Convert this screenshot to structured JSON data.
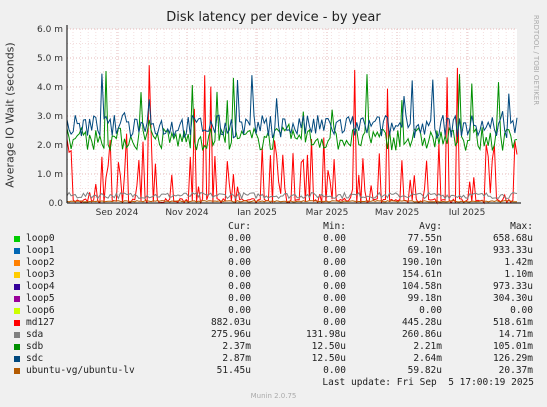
{
  "chart_data": {
    "type": "line",
    "title": "Disk latency per device - by year",
    "ylabel": "Average IO Wait (seconds)",
    "ylim": [
      0,
      6.0
    ],
    "y_ticks": [
      "0.0",
      "1.0 m",
      "2.0 m",
      "3.0 m",
      "4.0 m",
      "5.0 m",
      "6.0 m"
    ],
    "x_ticks": [
      "Sep 2024",
      "Nov 2024",
      "Jan 2025",
      "Mar 2025",
      "May 2025",
      "Jul 2025"
    ],
    "grid": true,
    "series": [
      {
        "name": "loop0",
        "color": "#00cc00",
        "level": 0.0
      },
      {
        "name": "loop1",
        "color": "#0066b3",
        "level": 0.0
      },
      {
        "name": "loop2",
        "color": "#ff8000",
        "level": 0.0
      },
      {
        "name": "loop3",
        "color": "#ffcc00",
        "level": 0.0
      },
      {
        "name": "loop4",
        "color": "#330099",
        "level": 0.0
      },
      {
        "name": "loop5",
        "color": "#990099",
        "level": 0.0
      },
      {
        "name": "loop6",
        "color": "#ccff00",
        "level": 0.0
      },
      {
        "name": "md127",
        "color": "#ff0000",
        "level": 0.45,
        "spiky": true
      },
      {
        "name": "sda",
        "color": "#808080",
        "level": 0.26
      },
      {
        "name": "sdb",
        "color": "#008f00",
        "level": 2.21
      },
      {
        "name": "sdc",
        "color": "#00487d",
        "level": 2.64
      },
      {
        "name": "ubuntu-vg/ubuntu-lv",
        "color": "#b35a00",
        "level": 0.06
      }
    ]
  },
  "legend": {
    "headers": {
      "cur": "Cur:",
      "min": "Min:",
      "avg": "Avg:",
      "max": "Max:"
    },
    "rows": [
      {
        "name": "loop0",
        "color": "#00cc00",
        "cur": "0.00",
        "min": "0.00",
        "avg": "77.55n",
        "max": "658.68u"
      },
      {
        "name": "loop1",
        "color": "#0066b3",
        "cur": "0.00",
        "min": "0.00",
        "avg": "69.10n",
        "max": "933.33u"
      },
      {
        "name": "loop2",
        "color": "#ff8000",
        "cur": "0.00",
        "min": "0.00",
        "avg": "190.10n",
        "max": "1.42m"
      },
      {
        "name": "loop3",
        "color": "#ffcc00",
        "cur": "0.00",
        "min": "0.00",
        "avg": "154.61n",
        "max": "1.10m"
      },
      {
        "name": "loop4",
        "color": "#330099",
        "cur": "0.00",
        "min": "0.00",
        "avg": "104.58n",
        "max": "973.33u"
      },
      {
        "name": "loop5",
        "color": "#990099",
        "cur": "0.00",
        "min": "0.00",
        "avg": "99.18n",
        "max": "304.30u"
      },
      {
        "name": "loop6",
        "color": "#ccff00",
        "cur": "0.00",
        "min": "0.00",
        "avg": "0.00",
        "max": "0.00"
      },
      {
        "name": "md127",
        "color": "#ff0000",
        "cur": "882.03u",
        "min": "0.00",
        "avg": "445.28u",
        "max": "518.61m"
      },
      {
        "name": "sda",
        "color": "#808080",
        "cur": "275.96u",
        "min": "131.98u",
        "avg": "260.86u",
        "max": "14.71m"
      },
      {
        "name": "sdb",
        "color": "#008f00",
        "cur": "2.37m",
        "min": "12.50u",
        "avg": "2.21m",
        "max": "105.01m"
      },
      {
        "name": "sdc",
        "color": "#00487d",
        "cur": "2.87m",
        "min": "12.50u",
        "avg": "2.64m",
        "max": "126.29m"
      },
      {
        "name": "ubuntu-vg/ubuntu-lv",
        "color": "#b35a00",
        "cur": "51.45u",
        "min": "0.00",
        "avg": "59.82u",
        "max": "20.37m"
      }
    ]
  },
  "footer": {
    "last_update": "Last update: Fri Sep  5 17:00:19 2025",
    "munin": "Munin 2.0.75",
    "side_label": "RRDTOOL / TOBI OETIKER"
  }
}
